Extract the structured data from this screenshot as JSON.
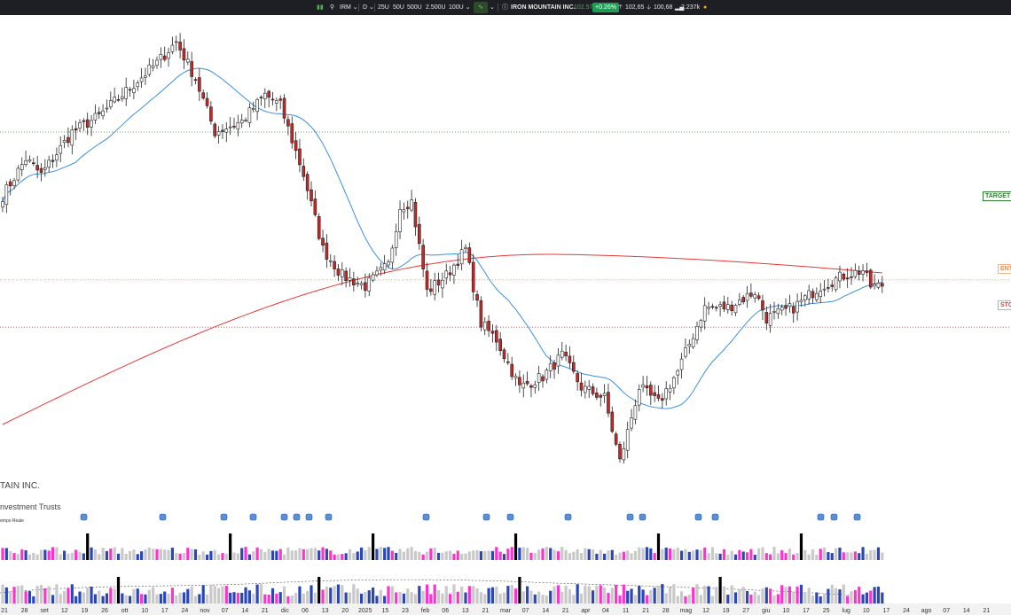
{
  "topbar": {
    "symbol": "IRM",
    "interval": "D",
    "periods": [
      "25U",
      "50U",
      "500U",
      "2.500U",
      "100U"
    ],
    "company": "IRON MOUNTAIN INC.",
    "last": "102.57",
    "change": "+0.26%",
    "high": "102,65",
    "low": "100,68",
    "volume": "2.237k",
    "colors": {
      "bg": "#1e1f24",
      "up": "#1f9d55"
    }
  },
  "overlay": {
    "company_partial": "TAIN INC.",
    "sector_partial": "nvestment Trusts",
    "realtime_partial": "empo Reale"
  },
  "levels": [
    {
      "label": "TARGET",
      "price": 130,
      "color": "#2e7d32"
    },
    {
      "label": "ENT",
      "price": 102.2,
      "color": "#f08a4b"
    },
    {
      "label": "STO",
      "price": 93.3,
      "color": "#e53935"
    }
  ],
  "chart_data": {
    "type": "candlestick",
    "x_axis_labels": [
      "21",
      "28",
      "set",
      "12",
      "19",
      "26",
      "ott",
      "10",
      "17",
      "24",
      "nov",
      "07",
      "14",
      "21",
      "dic",
      "06",
      "13",
      "20",
      "2025",
      "15",
      "23",
      "feb",
      "06",
      "13",
      "21",
      "mar",
      "07",
      "14",
      "21",
      "apr",
      "04",
      "11",
      "21",
      "28",
      "mag",
      "12",
      "19",
      "27",
      "giu",
      "10",
      "17",
      "25",
      "lug",
      "10",
      "17",
      "24",
      "ago",
      "07",
      "14",
      "21"
    ],
    "series": [
      {
        "name": "price",
        "color_up": "#ffffff",
        "color_down": "#c62828"
      },
      {
        "name": "SMA20",
        "color": "#3d8fe0"
      },
      {
        "name": "SMA200",
        "color": "#e53935"
      }
    ],
    "y_range": [
      62,
      152
    ],
    "start_close": 118,
    "swings": [
      [
        0,
        118
      ],
      [
        6,
        125
      ],
      [
        10,
        122
      ],
      [
        18,
        130
      ],
      [
        25,
        133
      ],
      [
        40,
        143
      ],
      [
        45,
        147
      ],
      [
        50,
        140
      ],
      [
        55,
        130
      ],
      [
        62,
        132
      ],
      [
        68,
        137
      ],
      [
        72,
        135
      ],
      [
        78,
        122
      ],
      [
        83,
        108
      ],
      [
        88,
        103
      ],
      [
        94,
        101
      ],
      [
        100,
        105
      ],
      [
        103,
        116
      ],
      [
        106,
        117
      ],
      [
        110,
        100
      ],
      [
        115,
        103
      ],
      [
        120,
        108
      ],
      [
        124,
        94
      ],
      [
        128,
        91
      ],
      [
        134,
        82
      ],
      [
        140,
        84
      ],
      [
        145,
        88
      ],
      [
        150,
        82
      ],
      [
        156,
        80
      ],
      [
        160,
        68
      ],
      [
        165,
        82
      ],
      [
        170,
        79
      ],
      [
        175,
        85
      ],
      [
        182,
        97
      ],
      [
        188,
        97
      ],
      [
        195,
        100
      ],
      [
        198,
        95
      ],
      [
        205,
        97
      ],
      [
        212,
        101
      ],
      [
        218,
        103
      ],
      [
        223,
        104
      ],
      [
        225,
        101
      ],
      [
        228,
        101
      ]
    ],
    "volume_colors": {
      "buy": "#2b46b8",
      "sell": "#ff33cc",
      "neutral": "#c9c9c9",
      "spike": "#000000"
    },
    "events_icon": "dividend-event-icon"
  }
}
